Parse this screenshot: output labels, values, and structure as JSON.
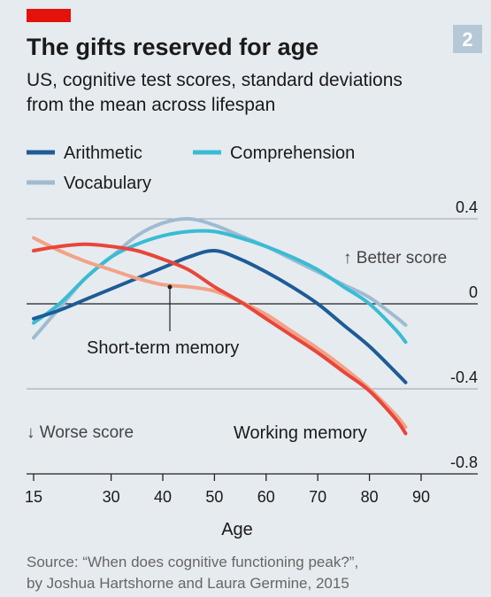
{
  "chart_data": {
    "type": "line",
    "badge": "2",
    "title": "The gifts reserved for age",
    "subtitle": [
      "US, cognitive test scores, standard deviations",
      "from the mean across lifespan"
    ],
    "x_label": "Age",
    "x": [
      15,
      20,
      25,
      30,
      35,
      40,
      45,
      50,
      55,
      60,
      65,
      70,
      75,
      80,
      85,
      87
    ],
    "xlim": [
      15,
      90
    ],
    "xticks": [
      15,
      30,
      40,
      50,
      60,
      70,
      80,
      90
    ],
    "ylim": [
      -0.8,
      0.4
    ],
    "yticks": [
      0.4,
      0,
      -0.4,
      -0.8
    ],
    "grid": true,
    "series": [
      {
        "name": "Arithmetic",
        "color": "#1d5c96",
        "values": [
          -0.07,
          -0.03,
          0.02,
          0.07,
          0.12,
          0.17,
          0.22,
          0.25,
          0.21,
          0.15,
          0.08,
          0.0,
          -0.1,
          -0.2,
          -0.32,
          -0.37
        ]
      },
      {
        "name": "Comprehension",
        "color": "#39bcd3",
        "values": [
          -0.09,
          0.0,
          0.12,
          0.22,
          0.28,
          0.32,
          0.34,
          0.34,
          0.31,
          0.27,
          0.22,
          0.16,
          0.08,
          0.0,
          -0.12,
          -0.18
        ]
      },
      {
        "name": "Vocabulary",
        "color": "#9fbbd2",
        "values": [
          -0.16,
          -0.02,
          0.12,
          0.22,
          0.32,
          0.38,
          0.4,
          0.37,
          0.32,
          0.27,
          0.21,
          0.15,
          0.09,
          0.03,
          -0.06,
          -0.1
        ]
      },
      {
        "name": "Short-term memory",
        "color": "#f3a286",
        "values": [
          0.31,
          0.25,
          0.2,
          0.16,
          0.12,
          0.09,
          0.08,
          0.06,
          0.01,
          -0.05,
          -0.13,
          -0.21,
          -0.3,
          -0.4,
          -0.52,
          -0.58
        ]
      },
      {
        "name": "Working memory",
        "color": "#e8463a",
        "values": [
          0.25,
          0.27,
          0.28,
          0.27,
          0.25,
          0.21,
          0.16,
          0.08,
          0.01,
          -0.07,
          -0.15,
          -0.23,
          -0.32,
          -0.41,
          -0.54,
          -0.61
        ]
      }
    ],
    "legend_series": [
      0,
      1,
      2
    ],
    "annotations": {
      "better": "↑ Better score",
      "worse": "↓ Worse score"
    },
    "source": [
      "Source: “When does cognitive functioning peak?”,",
      "by Joshua Hartshorne and Laura Germine, 2015"
    ]
  }
}
